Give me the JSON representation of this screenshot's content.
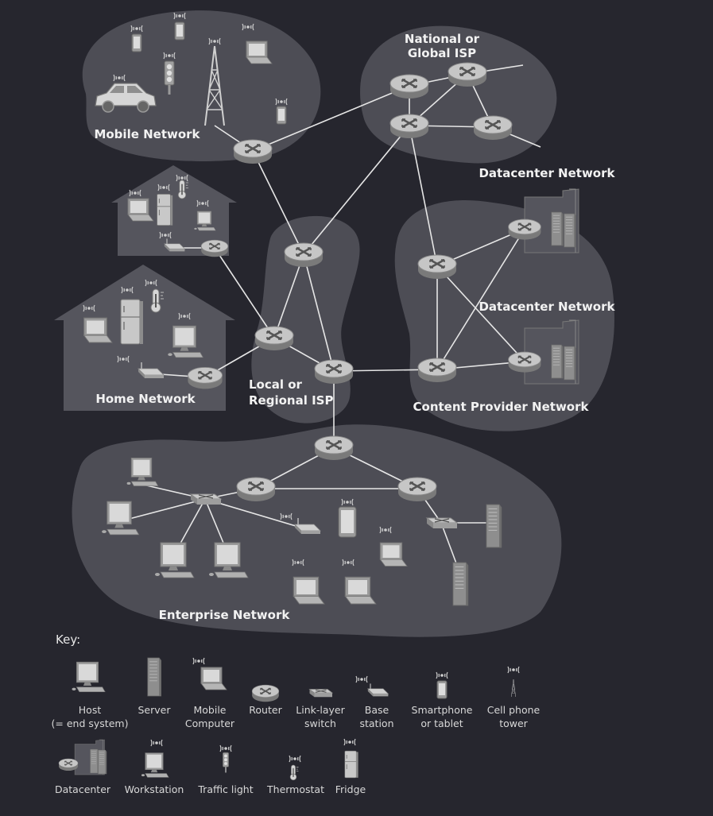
{
  "regions": {
    "mobile": "Mobile Network",
    "national_isp": [
      "National or",
      "Global ISP"
    ],
    "datacenter_1": "Datacenter Network",
    "datacenter_2": "Datacenter Network",
    "home": "Home Network",
    "local_isp": [
      "Local or",
      "Regional ISP"
    ],
    "content_provider": "Content Provider Network",
    "enterprise": "Enterprise Network"
  },
  "key": {
    "title": "Key:",
    "items": [
      {
        "icon": "host",
        "label": [
          "Host",
          "(= end system)"
        ]
      },
      {
        "icon": "server",
        "label": [
          "Server"
        ]
      },
      {
        "icon": "mobile-computer",
        "label": [
          "Mobile",
          "Computer"
        ]
      },
      {
        "icon": "router",
        "label": [
          "Router"
        ]
      },
      {
        "icon": "link-layer-switch",
        "label": [
          "Link-layer",
          "switch"
        ]
      },
      {
        "icon": "base-station",
        "label": [
          "Base",
          "station"
        ]
      },
      {
        "icon": "smartphone",
        "label": [
          "Smartphone",
          "or tablet"
        ]
      },
      {
        "icon": "cell-tower",
        "label": [
          "Cell phone",
          "tower"
        ]
      },
      {
        "icon": "datacenter",
        "label": [
          "Datacenter"
        ]
      },
      {
        "icon": "workstation",
        "label": [
          "Workstation"
        ]
      },
      {
        "icon": "traffic-light",
        "label": [
          "Traffic light"
        ]
      },
      {
        "icon": "thermostat",
        "label": [
          "Thermostat"
        ]
      },
      {
        "icon": "fridge",
        "label": [
          "Fridge"
        ]
      }
    ]
  },
  "colors": {
    "background": "#26262e",
    "region_fill": "#4d4d55",
    "house_fill": "#55555d",
    "link": "#e6e6e6",
    "router": "#bdbdbd",
    "label": "#f2f2f2"
  }
}
